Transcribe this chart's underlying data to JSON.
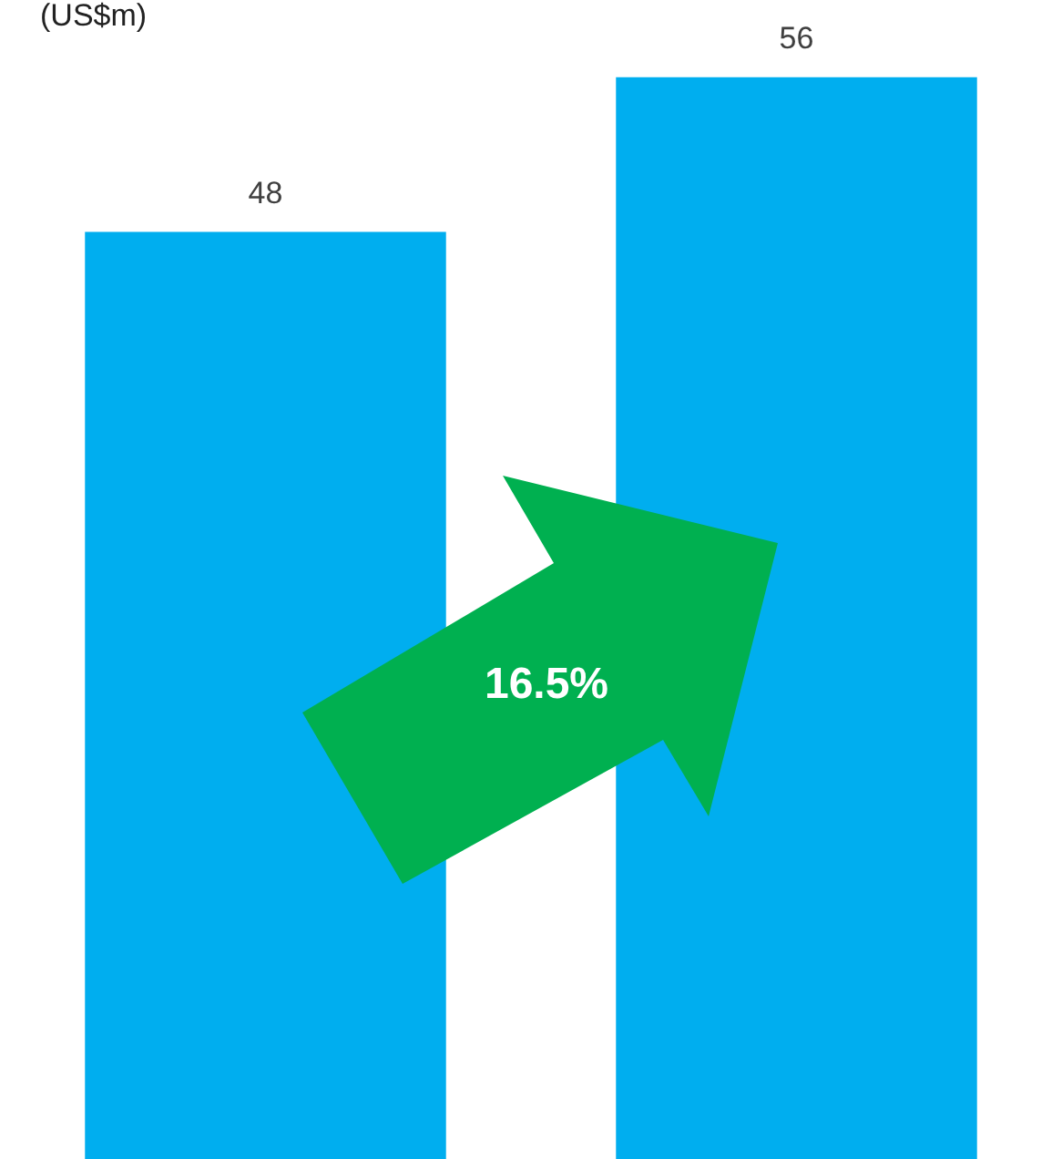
{
  "chart_data": {
    "type": "bar",
    "ylabel": "(US$m)",
    "categories": [
      null,
      null
    ],
    "values": [
      48,
      56
    ],
    "color": "#00aeef",
    "data_labels": true,
    "annotations": [
      "16.5%"
    ]
  }
}
